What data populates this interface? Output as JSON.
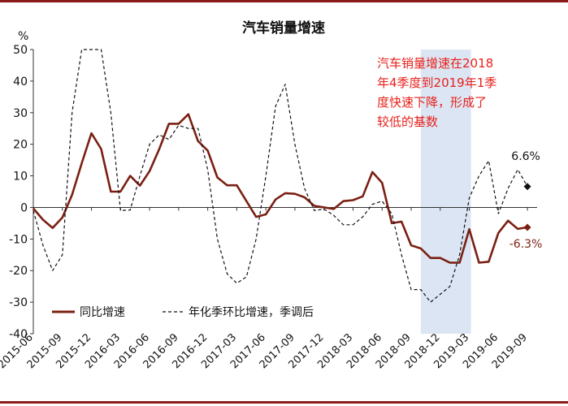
{
  "chart_data": {
    "type": "line",
    "title": "汽车销量增速",
    "ylabel": "%",
    "ylim": [
      -40,
      50
    ],
    "yticks": [
      -40,
      -30,
      -20,
      -10,
      0,
      10,
      20,
      30,
      40,
      50
    ],
    "grid": false,
    "x_start": "2015-06",
    "x_end": "2019-10",
    "tick_labels": [
      "2015-06",
      "2015-09",
      "2015-12",
      "2016-03",
      "2016-06",
      "2016-09",
      "2016-12",
      "2017-03",
      "2017-06",
      "2017-09",
      "2017-12",
      "2018-03",
      "2018-06",
      "2018-09",
      "2018-12",
      "2019-03",
      "2019-06",
      "2019-09"
    ],
    "shaded_region": {
      "from": "2018-10",
      "to": "2019-02",
      "color": "#dbe5f3"
    },
    "annotation": "汽车销量增速在2018\n年4季度到2019年1季\n度快速下降，形成了\n较低的基数",
    "annotation_color": "#e8211b",
    "legend_position": "bottom-left",
    "series": [
      {
        "name": "同比增速",
        "color": "#7b1f12",
        "style": "solid",
        "x": [
          "2015-06",
          "2015-07",
          "2015-08",
          "2015-09",
          "2015-10",
          "2015-11",
          "2015-12",
          "2016-01",
          "2016-02",
          "2016-03",
          "2016-04",
          "2016-05",
          "2016-06",
          "2016-07",
          "2016-08",
          "2016-09",
          "2016-10",
          "2016-11",
          "2016-12",
          "2017-01",
          "2017-02",
          "2017-03",
          "2017-04",
          "2017-05",
          "2017-06",
          "2017-07",
          "2017-08",
          "2017-09",
          "2017-10",
          "2017-11",
          "2017-12",
          "2018-01",
          "2018-02",
          "2018-03",
          "2018-04",
          "2018-05",
          "2018-06",
          "2018-07",
          "2018-08",
          "2018-09",
          "2018-10",
          "2018-11",
          "2018-12",
          "2019-01",
          "2019-02",
          "2019-03",
          "2019-04",
          "2019-05",
          "2019-06",
          "2019-07",
          "2019-08",
          "2019-09"
        ],
        "values": [
          -0.3,
          -3.9,
          -6.5,
          -3.2,
          4.0,
          14.0,
          23.5,
          18.5,
          5.0,
          5.0,
          10.0,
          6.9,
          11.5,
          18.5,
          26.5,
          26.5,
          29.5,
          21.0,
          18.0,
          9.5,
          7.0,
          7.0,
          2.0,
          -3.0,
          -2.2,
          2.5,
          4.5,
          4.3,
          3.2,
          0.5,
          0.0,
          -0.5,
          2.0,
          2.3,
          3.5,
          11.2,
          7.8,
          -5.0,
          -4.5,
          -12.0,
          -13.0,
          -16.0,
          -16.0,
          -17.5,
          -17.5,
          -6.9,
          -17.5,
          -17.2,
          -8.1,
          -4.2,
          -6.8,
          -6.3
        ]
      },
      {
        "name": "年化季环比增速，季调后",
        "color": "#111111",
        "style": "dashed",
        "x": [
          "2015-06",
          "2015-07",
          "2015-08",
          "2015-09",
          "2015-10",
          "2015-11",
          "2015-12",
          "2016-01",
          "2016-02",
          "2016-03",
          "2016-04",
          "2016-05",
          "2016-06",
          "2016-07",
          "2016-08",
          "2016-09",
          "2016-10",
          "2016-11",
          "2016-12",
          "2017-01",
          "2017-02",
          "2017-03",
          "2017-04",
          "2017-05",
          "2017-06",
          "2017-07",
          "2017-08",
          "2017-09",
          "2017-10",
          "2017-11",
          "2017-12",
          "2018-01",
          "2018-02",
          "2018-03",
          "2018-04",
          "2018-05",
          "2018-06",
          "2018-07",
          "2018-08",
          "2018-09",
          "2018-10",
          "2018-11",
          "2018-12",
          "2019-01",
          "2019-02",
          "2019-03",
          "2019-04",
          "2019-05",
          "2019-06",
          "2019-07",
          "2019-08",
          "2019-09"
        ],
        "values": [
          -1.0,
          -12.0,
          -20.0,
          -15.0,
          30.0,
          50.0,
          50.0,
          50.0,
          30.0,
          -1.0,
          -0.8,
          10.0,
          20.0,
          23.0,
          21.5,
          26.0,
          25.0,
          25.0,
          12.0,
          -10.0,
          -21.0,
          -24.0,
          -22.0,
          -10.0,
          10.0,
          32.0,
          39.0,
          20.0,
          6.0,
          -1.0,
          -0.5,
          -2.5,
          -5.5,
          -5.5,
          -3.0,
          1.0,
          2.0,
          -2.0,
          -15.0,
          -26.0,
          -26.0,
          -30.0,
          -27.5,
          -25.0,
          -15.0,
          3.0,
          10.0,
          14.8,
          -2.0,
          6.0,
          12.0,
          6.6
        ]
      }
    ],
    "end_labels": [
      {
        "series": "年化季环比增速，季调后",
        "text": "6.6%"
      },
      {
        "series": "同比增速",
        "text": "-6.3%"
      }
    ]
  }
}
